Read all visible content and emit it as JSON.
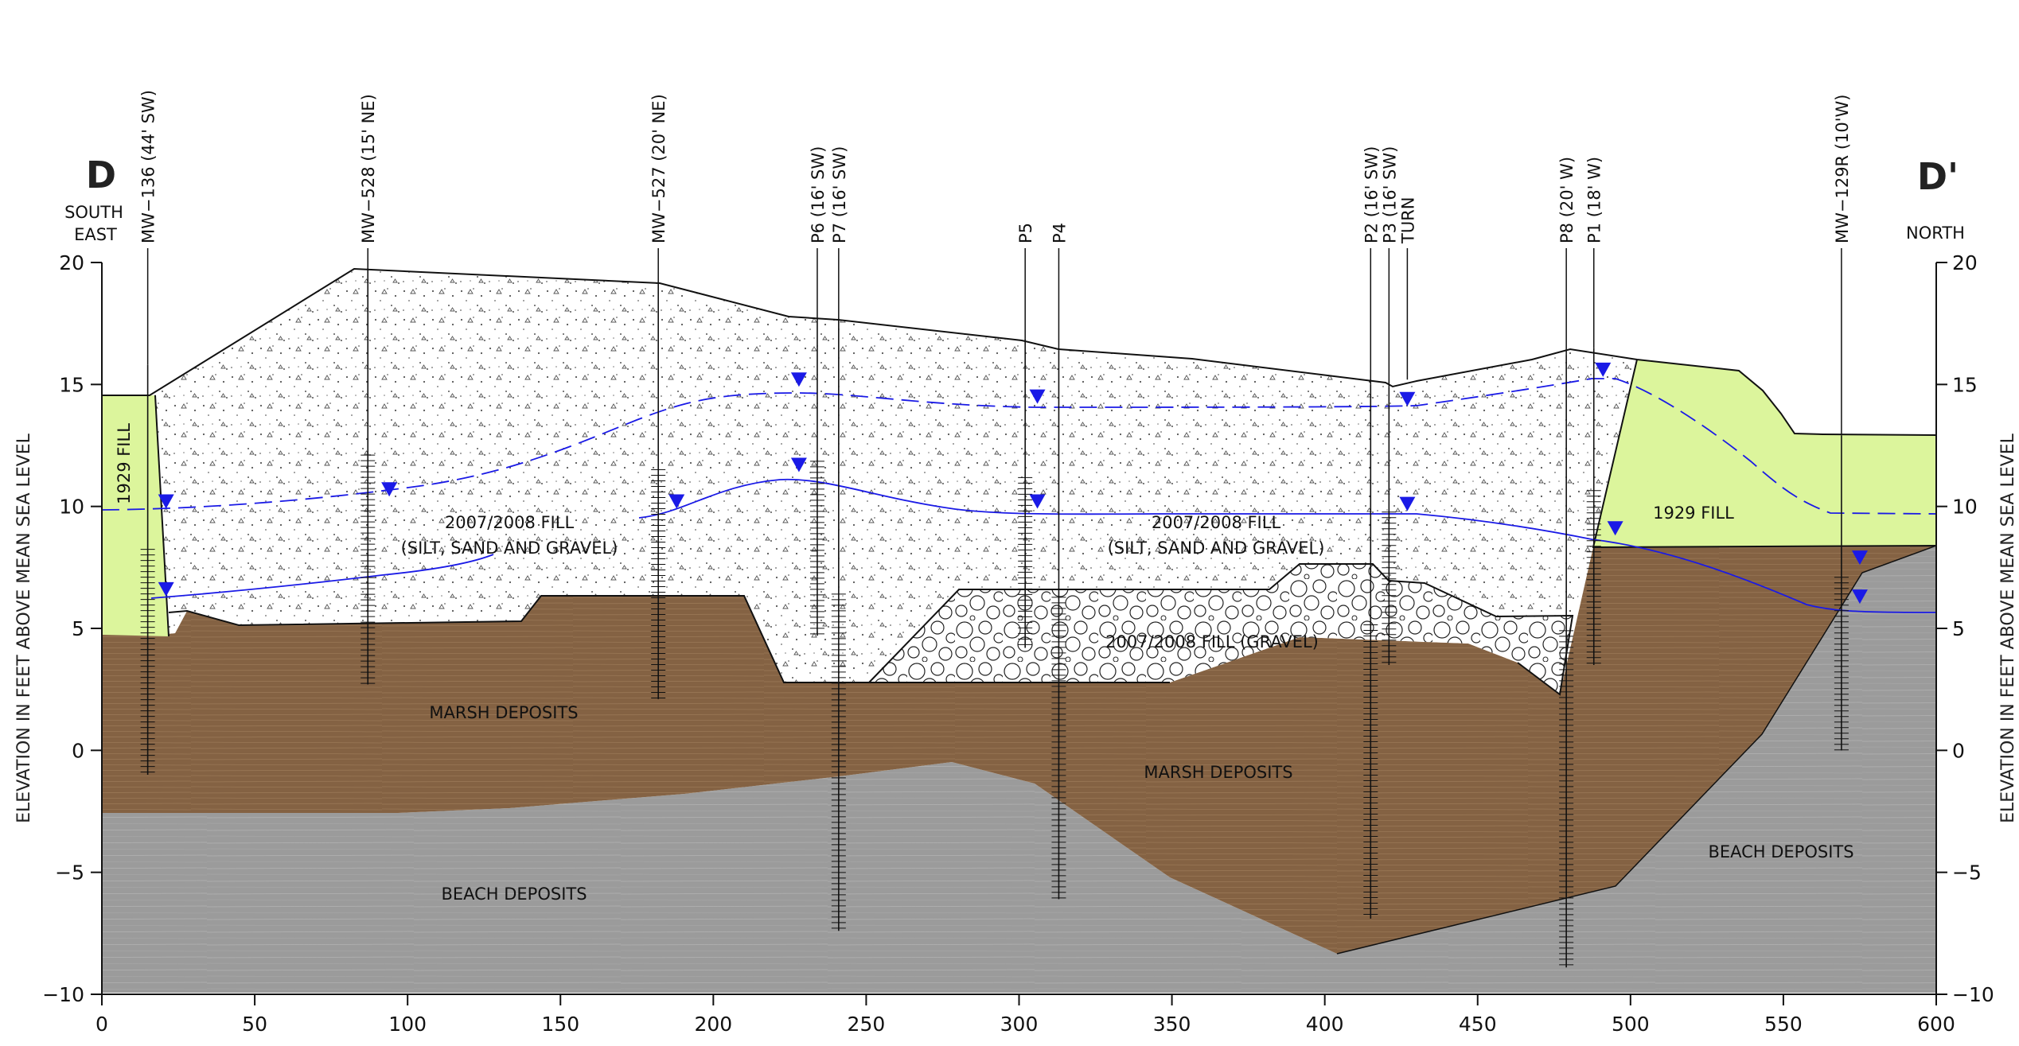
{
  "section": {
    "left_label": "D",
    "right_label": "D'",
    "left_direction": [
      "SOUTH",
      "EAST"
    ],
    "right_direction": "NORTH"
  },
  "axes": {
    "y_label": "ELEVATION IN FEET ABOVE MEAN SEA LEVEL",
    "y_ticks": [
      "20",
      "15",
      "10",
      "5",
      "0",
      "−5",
      "−10"
    ],
    "x_ticks": [
      "0",
      "50",
      "100",
      "150",
      "200",
      "250",
      "300",
      "350",
      "400",
      "450",
      "500",
      "550",
      "600"
    ],
    "x_range": [
      0,
      600
    ],
    "y_range": [
      -10,
      20
    ]
  },
  "wells": [
    {
      "label": "MW−136 (44' SW)",
      "station": 15,
      "top_elev": 15.8,
      "bottom_elev": -1.0
    },
    {
      "label": "MW−528 (15' NE)",
      "station": 87,
      "top_elev": 19.8,
      "bottom_elev": 2.7
    },
    {
      "label": "MW−527 (20' NE)",
      "station": 182,
      "top_elev": 19.2,
      "bottom_elev": 2.1
    },
    {
      "label": "P6 (16' SW)",
      "station": 234,
      "top_elev": 17.7,
      "bottom_elev": 4.7
    },
    {
      "label": "P7 (16' SW)",
      "station": 241,
      "top_elev": 17.7,
      "bottom_elev": -7.4
    },
    {
      "label": "P5",
      "station": 302,
      "top_elev": 16.9,
      "bottom_elev": 4.2
    },
    {
      "label": "P4",
      "station": 313,
      "top_elev": 16.4,
      "bottom_elev": -6.1
    },
    {
      "label": "P2 (16' SW)",
      "station": 415,
      "top_elev": 15.0,
      "bottom_elev": -6.9
    },
    {
      "label": "P3 (16' SW)",
      "station": 421,
      "top_elev": 14.9,
      "bottom_elev": 3.5
    },
    {
      "label": "TURN",
      "station": 427,
      "top_elev": 15.2,
      "bottom_elev": 15.2
    },
    {
      "label": "P8 (20' W)",
      "station": 479,
      "top_elev": 16.2,
      "bottom_elev": -8.9
    },
    {
      "label": "P1 (18' W)",
      "station": 488,
      "top_elev": 16.5,
      "bottom_elev": 3.5
    },
    {
      "label": "MW−129R (10'W)",
      "station": 569,
      "top_elev": 12.9,
      "bottom_elev": 0.0
    }
  ],
  "units": {
    "fill_2007_left": [
      "2007/2008 FILL",
      "(SILT, SAND AND GRAVEL)"
    ],
    "fill_2007_right": [
      "2007/2008 FILL",
      "(SILT, SAND AND GRAVEL)"
    ],
    "fill_gravel": "2007/2008 FILL (GRAVEL)",
    "fill_1929_left": "1929 FILL",
    "fill_1929_right": "1929 FILL",
    "marsh_left": "MARSH DEPOSITS",
    "marsh_right": "MARSH DEPOSITS",
    "beach_left": "BEACH DEPOSITS",
    "beach_right": "BEACH DEPOSITS"
  },
  "water_levels": [
    {
      "station": 21,
      "elev": 10.2
    },
    {
      "station": 94,
      "elev": 10.7
    },
    {
      "station": 188,
      "elev": 10.2
    },
    {
      "station": 228,
      "elev": 15.2
    },
    {
      "station": 228,
      "elev": 11.7
    },
    {
      "station": 306,
      "elev": 14.5
    },
    {
      "station": 306,
      "elev": 10.2
    },
    {
      "station": 427,
      "elev": 14.4
    },
    {
      "station": 427,
      "elev": 10.1
    },
    {
      "station": 491,
      "elev": 15.6
    },
    {
      "station": 495,
      "elev": 9.1
    },
    {
      "station": 21,
      "elev": 6.6
    },
    {
      "station": 575,
      "elev": 7.9
    },
    {
      "station": 575,
      "elev": 6.3
    }
  ],
  "colors": {
    "fill_1929": "#dcf59c",
    "marsh": "#846243",
    "beach": "#9b9b9b",
    "water": "#1a1ae6",
    "line": "#111111"
  }
}
